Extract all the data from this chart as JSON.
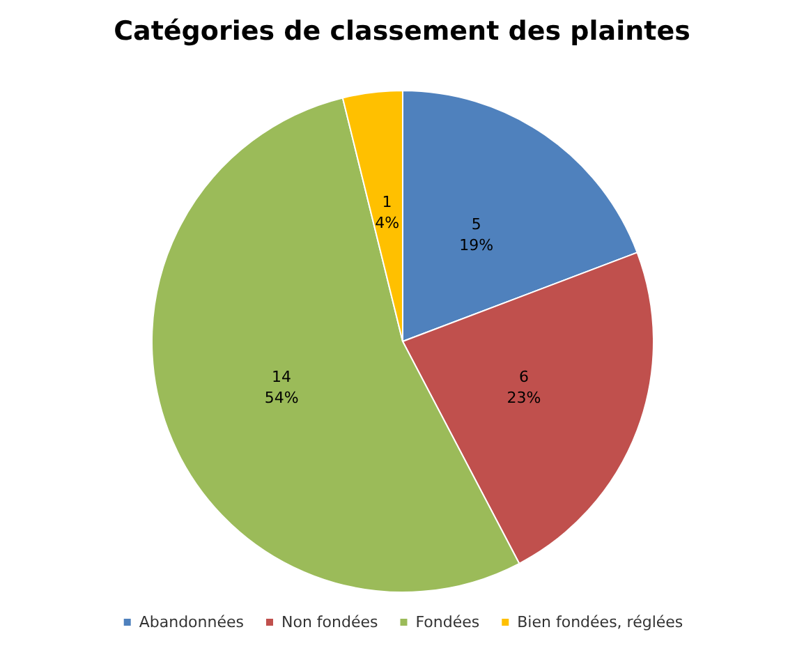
{
  "chart_data": {
    "type": "pie",
    "title": "Catégories de classement des plaintes",
    "categories": [
      "Abandonnées",
      "Non fondées",
      "Fondées",
      "Bien fondées, réglées"
    ],
    "values": [
      5,
      6,
      14,
      1
    ],
    "colors": [
      "#4f81bd",
      "#c0504d",
      "#9bbb59",
      "#ffc000"
    ],
    "value_labels": [
      "5\n19%",
      "6\n23%",
      "14\n54%",
      "1\n4%"
    ],
    "legend": "bottom"
  }
}
